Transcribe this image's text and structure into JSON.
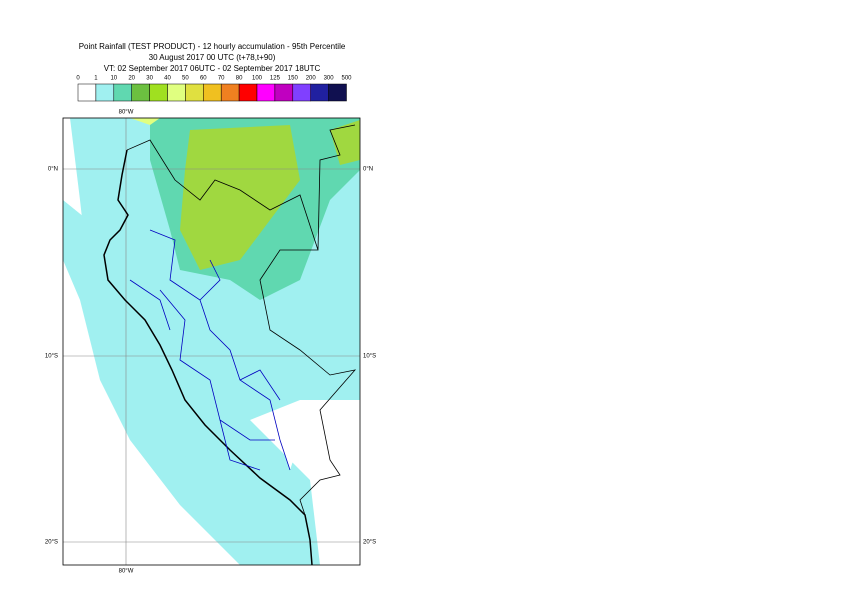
{
  "header": {
    "title": [
      "Point Rainfall (TEST PRODUCT) - 12 hourly accumulation - 95th Percentile",
      "30 August 2017 00 UTC (t+78,t+90)",
      "VT: 02 September 2017 06UTC - 02 September 2017 18UTC"
    ]
  },
  "legend": {
    "labels": [
      "0",
      "1",
      "10",
      "20",
      "30",
      "40",
      "50",
      "60",
      "70",
      "80",
      "100",
      "125",
      "150",
      "200",
      "300",
      "500"
    ],
    "colors": [
      "#ffffff",
      "#a0f0f0",
      "#60d8b0",
      "#6cc040",
      "#a0e020",
      "#e0ff80",
      "#e0e040",
      "#f0c020",
      "#f08020",
      "#ff0000",
      "#ff00ff",
      "#c000c0",
      "#8040ff",
      "#2020a0",
      "#101050"
    ]
  },
  "map": {
    "lon_labels": [
      "80°W"
    ],
    "lat_labels": [
      "0°N",
      "10°S",
      "20°S"
    ]
  }
}
